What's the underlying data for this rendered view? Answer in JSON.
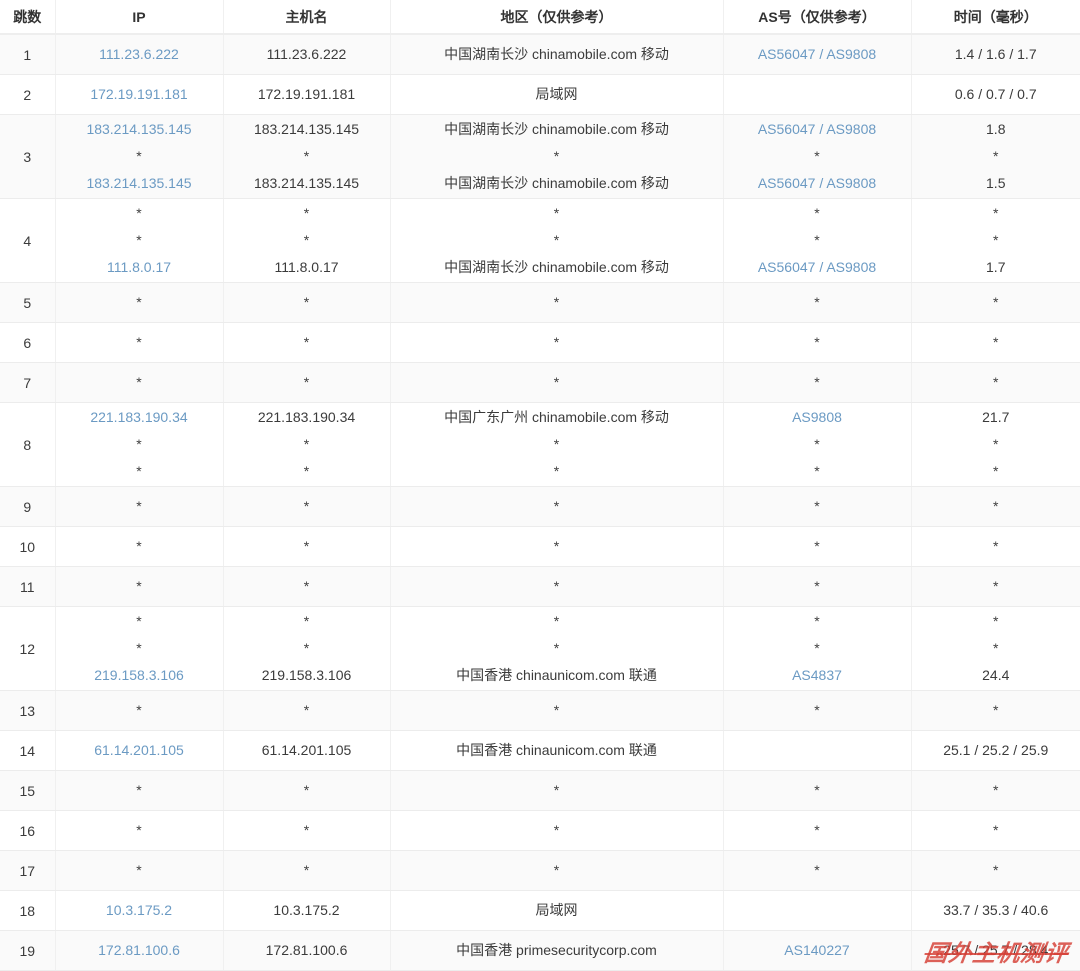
{
  "theme": {
    "link_color": "#6b9ac3",
    "stripe_color": "#fafafa",
    "watermark_color": "rgba(214,62,52,0.82)"
  },
  "table": {
    "columns": [
      "跳数",
      "IP",
      "主机名",
      "地区（仅供参考）",
      "AS号（仅供参考）",
      "时间（毫秒）"
    ],
    "rows": [
      {
        "hop": "1",
        "ip": [
          "111.23.6.222"
        ],
        "host": [
          "111.23.6.222"
        ],
        "region": [
          "中国湖南长沙 chinamobile.com 移动"
        ],
        "asn": [
          [
            "AS56047",
            "AS9808"
          ]
        ],
        "time": [
          "1.4 / 1.6 / 1.7"
        ]
      },
      {
        "hop": "2",
        "ip": [
          "172.19.191.181"
        ],
        "host": [
          "172.19.191.181"
        ],
        "region": [
          "局域网"
        ],
        "asn": [
          ""
        ],
        "time": [
          "0.6 / 0.7 / 0.7"
        ]
      },
      {
        "hop": "3",
        "ip": [
          "183.214.135.145",
          "*",
          "183.214.135.145"
        ],
        "host": [
          "183.214.135.145",
          "*",
          "183.214.135.145"
        ],
        "region": [
          "中国湖南长沙 chinamobile.com 移动",
          "*",
          "中国湖南长沙 chinamobile.com 移动"
        ],
        "asn": [
          [
            "AS56047",
            "AS9808"
          ],
          "*",
          [
            "AS56047",
            "AS9808"
          ]
        ],
        "time": [
          "1.8",
          "*",
          "1.5"
        ]
      },
      {
        "hop": "4",
        "ip": [
          "*",
          "*",
          "111.8.0.17"
        ],
        "host": [
          "*",
          "*",
          "111.8.0.17"
        ],
        "region": [
          "*",
          "*",
          "中国湖南长沙 chinamobile.com 移动"
        ],
        "asn": [
          "*",
          "*",
          [
            "AS56047",
            "AS9808"
          ]
        ],
        "time": [
          "*",
          "*",
          "1.7"
        ]
      },
      {
        "hop": "5",
        "ip": [
          "*"
        ],
        "host": [
          "*"
        ],
        "region": [
          "*"
        ],
        "asn": [
          "*"
        ],
        "time": [
          "*"
        ]
      },
      {
        "hop": "6",
        "ip": [
          "*"
        ],
        "host": [
          "*"
        ],
        "region": [
          "*"
        ],
        "asn": [
          "*"
        ],
        "time": [
          "*"
        ]
      },
      {
        "hop": "7",
        "ip": [
          "*"
        ],
        "host": [
          "*"
        ],
        "region": [
          "*"
        ],
        "asn": [
          "*"
        ],
        "time": [
          "*"
        ]
      },
      {
        "hop": "8",
        "ip": [
          "221.183.190.34",
          "*",
          "*"
        ],
        "host": [
          "221.183.190.34",
          "*",
          "*"
        ],
        "region": [
          "中国广东广州 chinamobile.com 移动",
          "*",
          "*"
        ],
        "asn": [
          [
            "AS9808"
          ],
          "*",
          "*"
        ],
        "time": [
          "21.7",
          "*",
          "*"
        ]
      },
      {
        "hop": "9",
        "ip": [
          "*"
        ],
        "host": [
          "*"
        ],
        "region": [
          "*"
        ],
        "asn": [
          "*"
        ],
        "time": [
          "*"
        ]
      },
      {
        "hop": "10",
        "ip": [
          "*"
        ],
        "host": [
          "*"
        ],
        "region": [
          "*"
        ],
        "asn": [
          "*"
        ],
        "time": [
          "*"
        ]
      },
      {
        "hop": "11",
        "ip": [
          "*"
        ],
        "host": [
          "*"
        ],
        "region": [
          "*"
        ],
        "asn": [
          "*"
        ],
        "time": [
          "*"
        ]
      },
      {
        "hop": "12",
        "ip": [
          "*",
          "*",
          "219.158.3.106"
        ],
        "host": [
          "*",
          "*",
          "219.158.3.106"
        ],
        "region": [
          "*",
          "*",
          "中国香港 chinaunicom.com 联通"
        ],
        "asn": [
          "*",
          "*",
          [
            "AS4837"
          ]
        ],
        "time": [
          "*",
          "*",
          "24.4"
        ]
      },
      {
        "hop": "13",
        "ip": [
          "*"
        ],
        "host": [
          "*"
        ],
        "region": [
          "*"
        ],
        "asn": [
          "*"
        ],
        "time": [
          "*"
        ]
      },
      {
        "hop": "14",
        "ip": [
          "61.14.201.105"
        ],
        "host": [
          "61.14.201.105"
        ],
        "region": [
          "中国香港 chinaunicom.com 联通"
        ],
        "asn": [
          ""
        ],
        "time": [
          "25.1 / 25.2 / 25.9"
        ]
      },
      {
        "hop": "15",
        "ip": [
          "*"
        ],
        "host": [
          "*"
        ],
        "region": [
          "*"
        ],
        "asn": [
          "*"
        ],
        "time": [
          "*"
        ]
      },
      {
        "hop": "16",
        "ip": [
          "*"
        ],
        "host": [
          "*"
        ],
        "region": [
          "*"
        ],
        "asn": [
          "*"
        ],
        "time": [
          "*"
        ]
      },
      {
        "hop": "17",
        "ip": [
          "*"
        ],
        "host": [
          "*"
        ],
        "region": [
          "*"
        ],
        "asn": [
          "*"
        ],
        "time": [
          "*"
        ]
      },
      {
        "hop": "18",
        "ip": [
          "10.3.175.2"
        ],
        "host": [
          "10.3.175.2"
        ],
        "region": [
          "局域网"
        ],
        "asn": [
          ""
        ],
        "time": [
          "33.7 / 35.3 / 40.6"
        ]
      },
      {
        "hop": "19",
        "ip": [
          "172.81.100.6"
        ],
        "host": [
          "172.81.100.6"
        ],
        "region": [
          "中国香港 primesecuritycorp.com"
        ],
        "asn": [
          [
            "AS140227"
          ]
        ],
        "time": [
          "25.7 / 25.7 / 28.4"
        ]
      }
    ]
  },
  "watermark": {
    "text": "国外主机测评"
  }
}
